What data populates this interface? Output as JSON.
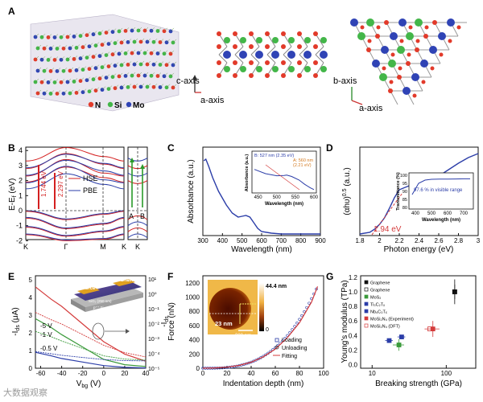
{
  "panel_letters": {
    "a": "A",
    "b": "B",
    "c": "C",
    "d": "D",
    "e": "E",
    "f": "F",
    "g": "G"
  },
  "panel_a": {
    "legend": {
      "n": "N",
      "si": "Si",
      "mo": "Mo"
    },
    "axes_side": {
      "c": "c-axis",
      "a": "a-axis"
    },
    "axes_top": {
      "b": "b-axis",
      "a": "a-axis"
    },
    "colors": {
      "n": "#e23a2a",
      "si": "#43b649",
      "mo": "#2f43b5"
    }
  },
  "panel_b": {
    "ylabel": "E-E",
    "ylabel_sub": "f",
    "ylabel_unit": " (eV)",
    "yticks": [
      "4",
      "3",
      "2",
      "1",
      "0",
      "-1",
      "-2"
    ],
    "kpoints": [
      "K",
      "Γ",
      "M",
      "K",
      "K"
    ],
    "legend": [
      "HSE",
      "PBE"
    ],
    "gap_hse": "2.297 eV",
    "gap_pbe": "1.744 eV",
    "side_labels": [
      "A",
      "B"
    ]
  },
  "chart_data": [
    {
      "id": "C",
      "type": "line",
      "xlabel": "Wavelength (nm)",
      "ylabel": "Absorbance (a.u.)",
      "xlim": [
        300,
        900
      ],
      "xticks": [
        "300",
        "400",
        "500",
        "600",
        "700",
        "800",
        "900"
      ],
      "series": [
        {
          "name": "absorbance",
          "x": [
            305,
            315,
            330,
            350,
            380,
            420,
            450,
            480,
            500,
            520,
            540,
            560,
            580,
            600,
            650,
            700,
            800,
            900
          ],
          "y": [
            0.93,
            0.95,
            0.86,
            0.72,
            0.55,
            0.38,
            0.28,
            0.23,
            0.24,
            0.25,
            0.23,
            0.16,
            0.09,
            0.05,
            0.03,
            0.02,
            0.02,
            0.02
          ]
        }
      ],
      "inset": {
        "xlabel": "Wavelength (nm)",
        "ylabel": "Absorbance (a.u.)",
        "xticks": [
          "450",
          "500",
          "550",
          "600"
        ],
        "label_b": "B: 527 nm (2.35 eV)",
        "label_a": "A: 560 nm",
        "label_a2": "(2.21 eV)",
        "x": [
          440,
          470,
          500,
          520,
          527,
          540,
          560,
          575,
          590,
          600
        ],
        "y": [
          0.62,
          0.5,
          0.44,
          0.45,
          0.46,
          0.42,
          0.32,
          0.2,
          0.1,
          0.05
        ]
      }
    },
    {
      "id": "D",
      "type": "line",
      "xlabel": "Photon energy (eV)",
      "ylabel": "(αhυ)",
      "ylabel_sup": "0.5",
      "ylabel_unit": " (a.u.)",
      "xlim": [
        1.8,
        3.0
      ],
      "xticks": [
        "1.8",
        "2",
        "2.2",
        "2.4",
        "2.6",
        "2.8",
        "3"
      ],
      "bandgap_label": "1.94 eV",
      "series": [
        {
          "name": "tauc",
          "x": [
            1.8,
            1.9,
            1.95,
            2.0,
            2.05,
            2.1,
            2.15,
            2.2,
            2.3,
            2.4,
            2.5,
            2.6,
            2.7,
            2.8,
            2.9,
            3.0
          ],
          "y": [
            0.0,
            0.02,
            0.06,
            0.12,
            0.2,
            0.32,
            0.45,
            0.55,
            0.6,
            0.62,
            0.66,
            0.72,
            0.8,
            0.88,
            0.95,
            1.0
          ]
        }
      ],
      "inset": {
        "xlabel": "Wavelength (nm)",
        "ylabel": "Transmittance (%)",
        "xticks": [
          "400",
          "500",
          "600",
          "700"
        ],
        "yticks": [
          "100",
          "95",
          "90",
          "85",
          "80"
        ],
        "note": "97.6 % in visible range",
        "x": [
          380,
          420,
          460,
          500,
          550,
          600,
          650,
          700,
          740
        ],
        "y": [
          88,
          95,
          97,
          97.5,
          97.6,
          97.6,
          97.7,
          97.8,
          97.8
        ]
      }
    },
    {
      "id": "E",
      "type": "line",
      "xlabel": "V",
      "xlabel_sub": "bg",
      "xlabel_unit": " (V)",
      "ylabel_left": "-I",
      "ylabel_left_sub": "ds",
      "ylabel_left_unit": " (μA)",
      "ylabel_right": "-I",
      "ylabel_right_sub": "ds",
      "xlim": [
        -60,
        40
      ],
      "xticks": [
        "-60",
        "-40",
        "-20",
        "0",
        "20",
        "40"
      ],
      "yticks_left": [
        "0",
        "1",
        "2",
        "3",
        "4",
        "5"
      ],
      "yticks_right": [
        "10⁻⁵",
        "10⁻⁴",
        "10⁻³",
        "10⁻²",
        "10⁻¹",
        "10⁰",
        "10¹"
      ],
      "curve_labels": [
        "-5 V",
        "-1 V",
        "-0.5 V"
      ],
      "device_labels": {
        "source": "Source",
        "drain": "Drain",
        "oxide": "SiO₂ (250 nm)",
        "substrate": "p⁺⁺ Si"
      },
      "series": [
        {
          "name": "-5 V",
          "color": "#d43b3b",
          "x": [
            -65,
            -50,
            -40,
            -20,
            0,
            20,
            40
          ],
          "y": [
            4.6,
            3.9,
            3.5,
            2.5,
            1.5,
            0.8,
            0.4
          ]
        },
        {
          "name": "-1 V",
          "color": "#3a9a3a",
          "x": [
            -65,
            -50,
            -40,
            -20,
            0,
            20,
            40
          ],
          "y": [
            2.8,
            2.3,
            1.9,
            1.2,
            0.5,
            0.2,
            0.1
          ]
        },
        {
          "name": "-0.5 V",
          "color": "#2b3da8",
          "x": [
            -65,
            -50,
            -40,
            -20,
            0,
            20,
            40
          ],
          "y": [
            0.9,
            0.7,
            0.55,
            0.35,
            0.15,
            0.05,
            0.02
          ]
        }
      ]
    },
    {
      "id": "F",
      "type": "scatter",
      "xlabel": "Indentation depth (nm)",
      "ylabel": "Force (nN)",
      "xlim": [
        0,
        100
      ],
      "ylim": [
        0,
        1300
      ],
      "xticks": [
        "0",
        "20",
        "40",
        "60",
        "80",
        "100"
      ],
      "yticks": [
        "0",
        "200",
        "400",
        "600",
        "800",
        "1000",
        "1200"
      ],
      "legend": [
        "Loading",
        "Unloading",
        "Fitting"
      ],
      "inset": {
        "colorbar_max": "44.4 nm",
        "colorbar_min": "0",
        "hole_label": "23 nm",
        "scale_label": "300 nm"
      },
      "series": [
        {
          "name": "fitting",
          "x": [
            0,
            10,
            20,
            30,
            40,
            50,
            60,
            70,
            80,
            90,
            95
          ],
          "y": [
            0,
            4,
            15,
            40,
            85,
            160,
            270,
            430,
            640,
            930,
            1150
          ]
        }
      ]
    },
    {
      "id": "G",
      "type": "scatter",
      "xlabel": "Breaking strength (GPa)",
      "ylabel": "Young's modulus (TPa)",
      "xscale": "log",
      "xticks": [
        "10",
        "100"
      ],
      "yticks": [
        "0.0",
        "0.2",
        "0.4",
        "0.6",
        "0.8",
        "1.0",
        "1.2"
      ],
      "legend": [
        {
          "name": "Graphene",
          "color": "#111111",
          "shape": "square"
        },
        {
          "name": "Graphene",
          "color": "#111111",
          "shape": "open-square"
        },
        {
          "name": "MoS₂",
          "color": "#3a9a3a",
          "shape": "triangle-down"
        },
        {
          "name": "Ti₃C₂Tₓ",
          "color": "#2b3da8",
          "shape": "triangle-up"
        },
        {
          "name": "Nb₄C₃Tₓ",
          "color": "#2b3da8",
          "shape": "triangle-up"
        },
        {
          "name": "MoSi₂N₄ (Experiment)",
          "color": "#d43b3b",
          "shape": "star"
        },
        {
          "name": "MoSi₂N₄ (DFT)",
          "color": "#d43b3b",
          "shape": "open-star"
        }
      ],
      "points": [
        {
          "name": "Graphene",
          "x": 130,
          "y": 1.0
        },
        {
          "name": "Graphene open",
          "x": 130,
          "y": 1.0
        },
        {
          "name": "MoS₂",
          "x": 23,
          "y": 0.27
        },
        {
          "name": "Ti₃C₂Tₓ",
          "x": 17,
          "y": 0.33
        },
        {
          "name": "Nb₄C₃Tₓ",
          "x": 25,
          "y": 0.38
        },
        {
          "name": "MoSi₂N₄ (Experiment)",
          "x": 66,
          "y": 0.49
        },
        {
          "name": "MoSi₂N₄ (DFT)",
          "x": 60,
          "y": 0.49
        }
      ]
    }
  ],
  "watermark": "大数据观察"
}
